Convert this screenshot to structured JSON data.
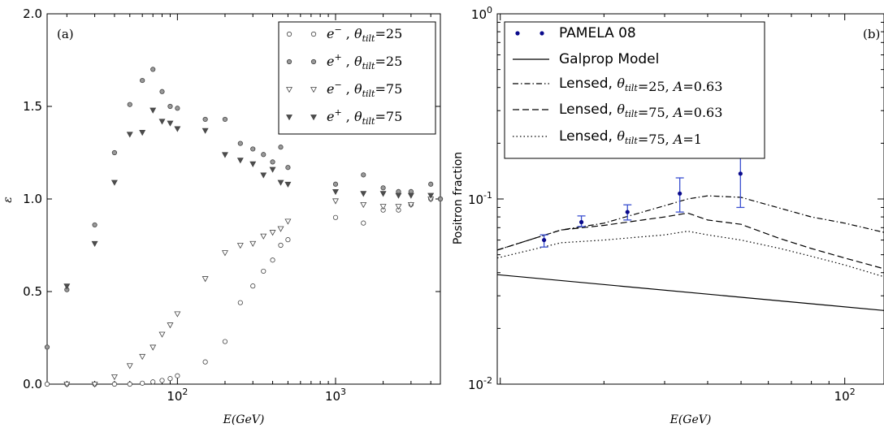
{
  "chart_data": [
    {
      "type": "scatter",
      "panel_label": "(a)",
      "xlabel": "E(GeV)",
      "ylabel": "ε",
      "xscale": "log",
      "xlim": [
        15,
        4600
      ],
      "ylim": [
        0,
        2
      ],
      "yticks": [
        "0.0",
        "0.5",
        "1.0",
        "1.5",
        "2.0"
      ],
      "xtick_labels": [
        {
          "value": 100,
          "base": "10",
          "exp": "2"
        },
        {
          "value": 1000,
          "base": "10",
          "exp": "3"
        }
      ],
      "legend_position": "top-right",
      "series": [
        {
          "name": "e⁻ , θtilt=25",
          "legend": {
            "particle": "e",
            "charge": "−",
            "theta": "θ",
            "sub": "tilt",
            "val": "=25"
          },
          "marker": "circle",
          "fill": "#ffffff",
          "x": [
            15,
            20,
            30,
            40,
            50,
            60,
            70,
            80,
            90,
            100,
            150,
            200,
            250,
            300,
            350,
            400,
            450,
            500,
            1000,
            1500,
            2000,
            2500,
            3000,
            4000,
            4600
          ],
          "y": [
            0.0,
            0.0,
            0.0,
            0.0,
            0.0,
            0.005,
            0.012,
            0.02,
            0.03,
            0.045,
            0.12,
            0.23,
            0.44,
            0.53,
            0.61,
            0.67,
            0.75,
            0.78,
            0.9,
            0.87,
            0.94,
            0.94,
            0.97,
            1.0,
            1.0
          ]
        },
        {
          "name": "e⁺ , θtilt=25",
          "legend": {
            "particle": "e",
            "charge": "+",
            "theta": "θ",
            "sub": "tilt",
            "val": "=25"
          },
          "marker": "circle",
          "fill": "#999999",
          "x": [
            15,
            20,
            30,
            40,
            50,
            60,
            70,
            80,
            90,
            100,
            150,
            200,
            250,
            300,
            350,
            400,
            450,
            500,
            1000,
            1500,
            2000,
            2500,
            3000,
            4000,
            4600
          ],
          "y": [
            0.2,
            0.51,
            0.86,
            1.25,
            1.51,
            1.64,
            1.7,
            1.58,
            1.5,
            1.49,
            1.43,
            1.43,
            1.3,
            1.27,
            1.24,
            1.2,
            1.28,
            1.17,
            1.08,
            1.13,
            1.06,
            1.04,
            1.04,
            1.08,
            1.0
          ]
        },
        {
          "name": "e⁻ , θtilt=75",
          "legend": {
            "particle": "e",
            "charge": "−",
            "theta": "θ",
            "sub": "tilt",
            "val": "=75"
          },
          "marker": "triangle",
          "fill": "#ffffff",
          "x": [
            20,
            30,
            40,
            50,
            60,
            70,
            80,
            90,
            100,
            150,
            200,
            250,
            300,
            350,
            400,
            450,
            500,
            1000,
            1500,
            2000,
            2500,
            3000,
            4000
          ],
          "y": [
            0.0,
            0.0,
            0.04,
            0.1,
            0.15,
            0.2,
            0.27,
            0.32,
            0.38,
            0.57,
            0.71,
            0.75,
            0.76,
            0.8,
            0.82,
            0.84,
            0.88,
            0.99,
            0.97,
            0.96,
            0.96,
            0.97,
            1.0
          ]
        },
        {
          "name": "e⁺ , θtilt=75",
          "legend": {
            "particle": "e",
            "charge": "+",
            "theta": "θ",
            "sub": "tilt",
            "val": "=75"
          },
          "marker": "triangle",
          "fill": "#4d4d4d",
          "x": [
            20,
            30,
            40,
            50,
            60,
            70,
            80,
            90,
            100,
            150,
            200,
            250,
            300,
            350,
            400,
            450,
            500,
            1000,
            1500,
            2000,
            2500,
            3000,
            4000
          ],
          "y": [
            0.53,
            0.76,
            1.09,
            1.35,
            1.36,
            1.48,
            1.42,
            1.41,
            1.38,
            1.37,
            1.24,
            1.21,
            1.19,
            1.13,
            1.16,
            1.09,
            1.08,
            1.04,
            1.03,
            1.03,
            1.02,
            1.02,
            1.02
          ]
        }
      ]
    },
    {
      "type": "line",
      "panel_label": "(b)",
      "xlabel": "E(GeV)",
      "ylabel": "Positron fraction",
      "xscale": "log",
      "yscale": "log",
      "xlim": [
        9.8,
        130
      ],
      "ylim": [
        0.01,
        1
      ],
      "ytick_labels": [
        {
          "value": 0.01,
          "base": "10",
          "exp": "-2"
        },
        {
          "value": 0.1,
          "base": "10",
          "exp": "-1"
        },
        {
          "value": 1,
          "base": "10",
          "exp": "0"
        }
      ],
      "xtick_labels": [
        {
          "value": 100,
          "base": "10",
          "exp": "2"
        }
      ],
      "legend_position": "top-left",
      "points": {
        "name": "PAMELA 08",
        "color": "#0a0a8c",
        "errcolor": "#3a4fd0",
        "x": [
          13.4,
          17.2,
          23.4,
          33.2,
          49.8
        ],
        "y": [
          0.06,
          0.075,
          0.085,
          0.107,
          0.137
        ],
        "err_low": [
          0.055,
          0.071,
          0.077,
          0.085,
          0.09
        ],
        "err_high": [
          0.064,
          0.081,
          0.093,
          0.13,
          0.18
        ]
      },
      "lines": [
        {
          "name": "Galprop Model",
          "legend_parts": [
            {
              "t": "Galprop Model",
              "f": "sans"
            }
          ],
          "dash": "",
          "x": [
            9.8,
            130
          ],
          "y": [
            0.039,
            0.025
          ]
        },
        {
          "name": "Lensed, θtilt=25, A=0.63",
          "legend_parts": [
            {
              "t": "Lensed, ",
              "f": "sans"
            },
            {
              "t": "θ",
              "f": "serif"
            },
            {
              "t": "tilt",
              "f": "sub"
            },
            {
              "t": "=25, ",
              "f": "serif"
            },
            {
              "t": "A",
              "f": "serif"
            },
            {
              "t": "=0.63",
              "f": "serif"
            }
          ],
          "dash": "7 3 1.5 3",
          "x": [
            9.8,
            15,
            20,
            30,
            35,
            40,
            50,
            65,
            80,
            100,
            130
          ],
          "y": [
            0.053,
            0.068,
            0.074,
            0.092,
            0.1,
            0.104,
            0.102,
            0.089,
            0.08,
            0.074,
            0.066
          ]
        },
        {
          "name": "Lensed, θtilt=75, A=0.63",
          "legend_parts": [
            {
              "t": "Lensed, ",
              "f": "sans"
            },
            {
              "t": "θ",
              "f": "serif"
            },
            {
              "t": "tilt",
              "f": "sub"
            },
            {
              "t": "=75, ",
              "f": "serif"
            },
            {
              "t": "A",
              "f": "serif"
            },
            {
              "t": "=0.63",
              "f": "serif"
            }
          ],
          "dash": "8 4",
          "x": [
            9.8,
            15,
            20,
            30,
            35,
            40,
            50,
            65,
            80,
            100,
            130
          ],
          "y": [
            0.053,
            0.068,
            0.072,
            0.08,
            0.084,
            0.077,
            0.073,
            0.061,
            0.054,
            0.048,
            0.042
          ]
        },
        {
          "name": "Lensed, θtilt=75, A=1",
          "legend_parts": [
            {
              "t": "Lensed, ",
              "f": "sans"
            },
            {
              "t": "θ",
              "f": "serif"
            },
            {
              "t": "tilt",
              "f": "sub"
            },
            {
              "t": "=75, ",
              "f": "serif"
            },
            {
              "t": "A",
              "f": "serif"
            },
            {
              "t": "=1",
              "f": "serif"
            }
          ],
          "dash": "1.5 3",
          "x": [
            9.8,
            15,
            20,
            30,
            35,
            40,
            50,
            65,
            80,
            100,
            130
          ],
          "y": [
            0.048,
            0.058,
            0.06,
            0.064,
            0.067,
            0.064,
            0.06,
            0.054,
            0.049,
            0.044,
            0.038
          ]
        }
      ]
    }
  ]
}
